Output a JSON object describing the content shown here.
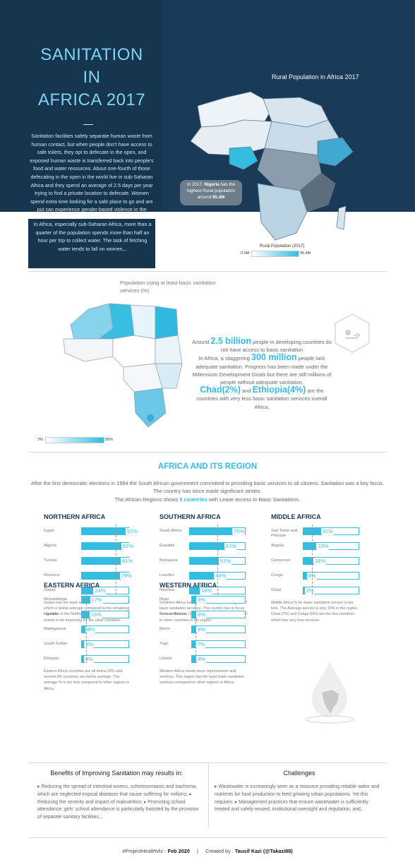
{
  "hero": {
    "title_line1": "SANITATION",
    "title_line2": "IN",
    "title_line3": "AFRICA 2017",
    "intro_p1": "Sanitation facilities safely separate human waste from human contact, but when people don't have access to safe toilets, they opt to defecate in the open, and exposed human waste is transferred back into people's food and water resources. About one-fourth of those defecating in the open in the world live in sub-Saharan Africa and they spend an average of 2.5 days per year trying to find a private location to defecate. Women spend extra time looking for a safe place to go and are put can experience gender-based violence in the process.",
    "intro_p2": "In Africa, especially sub-Saharan Africa, more than a quarter of the population spends more than half an hour per trip to collect water. The task of fetching water tends to fall on women,..",
    "map_title": "Rural Population in Africa 2017",
    "tooltip_pre": "In 2017, ",
    "tooltip_country": "Nigeria",
    "tooltip_mid": " has the highest Rural population around ",
    "tooltip_value": "95.4M",
    "legend_title": "Rural Population (2017)",
    "legend_min": "0.0M",
    "legend_max": "95.4M"
  },
  "sanitation_map": {
    "title": "Population using at least basic sanitation services (%)",
    "legend_min": "2%",
    "legend_max": "95%"
  },
  "stats": {
    "s1_pre": "Around ",
    "s1_big": "2.5 billion",
    "s1_post": " people in developing countries do not have access to basic sanitation",
    "s2_pre": "In Africa, a staggering ",
    "s2_big": "300 million",
    "s2_post": " people lack adequate sanitation. Progress has been made under the Millennium Development Goals but there are still millions of people without adequate sanitation.",
    "s3_big1": "Chad(2%)",
    "s3_mid": " and ",
    "s3_big2": "Ethiopia(4%)",
    "s3_post": " are the countries with very less basic sanitation services overall Africa."
  },
  "region_section": {
    "title": "AFRICA AND ITS REGION",
    "desc1": "After the first democratic elections in 1994 the South African government committed to providing basic services to all citizens. Sanitation was a key focus. The country has since made significant strides.",
    "desc2_pre": "The African Regions shows ",
    "desc2_bold": "5 countries",
    "desc2_post": "  with Lease access to Basic Sanitations."
  },
  "chart_data": [
    {
      "type": "bar",
      "title": "NORTHERN AFRICA",
      "categories": [
        "Egypt",
        "Algeria",
        "Tunisia",
        "Morocco",
        "Sudan"
      ],
      "values": [
        91,
        82,
        81,
        79,
        24
      ],
      "value_labels": [
        "91%",
        "82%",
        "81%",
        "79%",
        "24%"
      ],
      "average": 71.4,
      "note": "Sudan has the least sanitation service around 24% which is below average compared to the remaining countries in the Northern Region. This regions seems to be improving for the other countries."
    },
    {
      "type": "bar",
      "title": "SOUTHERN AFRICA",
      "categories": [
        "South Africa",
        "Eswatini",
        "Botswana",
        "Lesotho",
        "Namibia"
      ],
      "values": [
        75,
        61,
        51,
        43,
        18
      ],
      "value_labels": [
        "75%",
        "61%",
        "51%",
        "43%",
        "18%"
      ],
      "average": 49.6,
      "note": "Southern Africa has 2 countries below average % of basic sanitation services. The country has to focus more is Namibia (18%) which is very less compared to other countries in the region."
    },
    {
      "type": "bar",
      "title": "MIDDLE AFRICA",
      "categories": [
        "Sao Tome and Principe",
        "Angola",
        "Cameroon",
        "Congo",
        "Chad"
      ],
      "values": [
        31,
        23,
        18,
        6,
        2
      ],
      "value_labels": [
        "31%",
        "23%",
        "18%",
        "6%",
        "2%"
      ],
      "average": 16,
      "note": "Middle Africa % for basic sanitation service is too less. The Average service is only 16% in the region. Chad (2%) and Congo (6%) are the two countries which has very less services."
    },
    {
      "type": "bar",
      "title": "EASTERN AFRICA",
      "categories": [
        "Mozambique",
        "Uganda",
        "Madagascar",
        "South Sudan",
        "Ethiopia"
      ],
      "values": [
        17,
        16,
        8,
        5,
        4
      ],
      "value_labels": [
        "17%",
        "16%",
        "8%",
        "5%",
        "4%"
      ],
      "average": 10,
      "note": "Eastern Africa countries are all below 20% and around 3% countries are below average. The average % is too less compared to other regions in Africa."
    },
    {
      "type": "bar",
      "title": "WESTERN AFRICA",
      "categories": [
        "Niger",
        "Guinea-Bissau",
        "Benin",
        "Togo",
        "Liberia"
      ],
      "values": [
        8,
        8,
        8,
        7,
        8
      ],
      "value_labels": [
        "8%",
        "8%",
        "8%",
        "7%",
        "8%"
      ],
      "average": 7.8,
      "note": "Western Africa needs more improvement and services. This region has the least basic sanitation services compared to other regions in Africa."
    }
  ],
  "benefits": {
    "title": "Benefits of Improving Sanitation may results in:",
    "text": "▸ Reducing the spread of intestinal worms, schistosomiasis and trachoma, which are neglected tropical diseases that cause suffering for millions; ▸ Reducing the severity and impact of malnutrition; ▸ Promoting school attendance: girls' school attendance is particularly boosted by the provision of separate sanitary facilities,.."
  },
  "challenges": {
    "title": "Challenges",
    "text": "▸ Wastewater is increasingly seen as a resource providing reliable water and nutrients for food production to feed growing urban populations. Yet this requires: ▸ Management practices that ensure wastewater is sufficiently treated and safely reused; institutional oversight and regulation; and.."
  },
  "footer": {
    "tag": "#ProjectHealthViz",
    "sep1": " - ",
    "date": "Feb 2020",
    "divider": "|",
    "created_by": "Created by : ",
    "author": "Tausif Kazi (@Takazi88)"
  },
  "colors": {
    "navy": "#16354f",
    "accent": "#33bde0",
    "title": "#7fd3f2"
  }
}
